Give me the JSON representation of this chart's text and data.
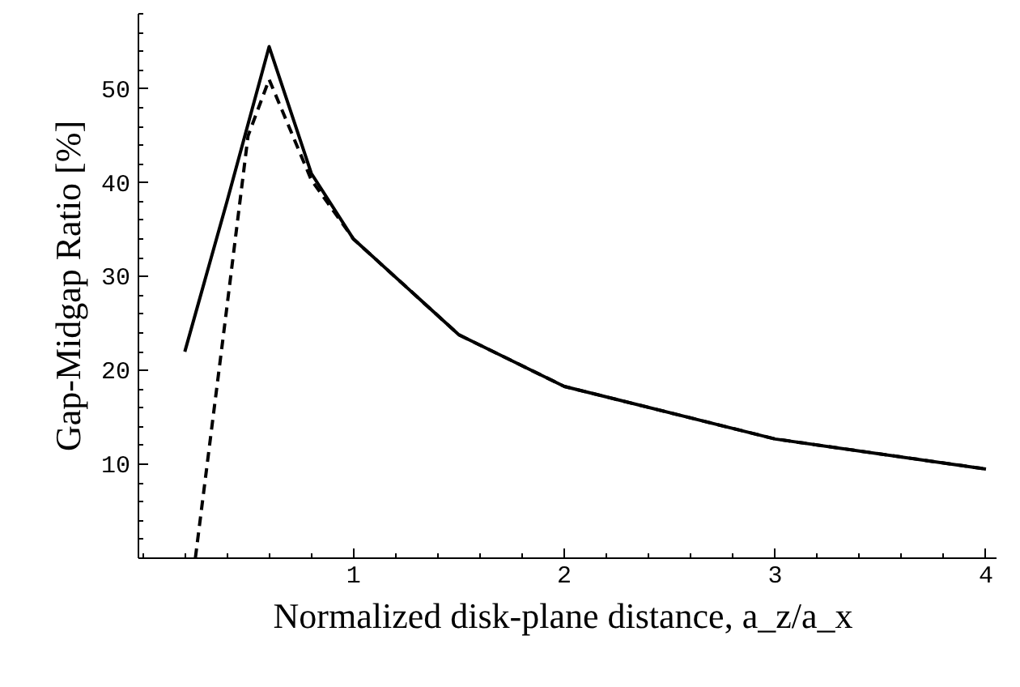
{
  "chart_data": {
    "type": "line",
    "xlabel": "Normalized disk-plane distance,  a_z/a_x",
    "ylabel": "Gap-Midgap Ratio [%]",
    "xlim": [
      -0.02,
      4.05
    ],
    "ylim": [
      0,
      58
    ],
    "xticks": [
      1,
      2,
      3,
      4
    ],
    "yticks": [
      10,
      20,
      30,
      40,
      50
    ],
    "grid": false,
    "marker": "none",
    "series": [
      {
        "color": "#000000",
        "line_style": "solid",
        "x": [
          0.2,
          0.4,
          0.6,
          0.8,
          1,
          1.5,
          2,
          3,
          4
        ],
        "values": [
          22,
          38,
          54.5,
          41,
          34,
          23.8,
          18.3,
          12.7,
          9.5
        ]
      },
      {
        "color": "#000000",
        "line_style": "dashed",
        "x": [
          0.25,
          0.39,
          0.5,
          0.6,
          0.8,
          1,
          1.5,
          2,
          3,
          4
        ],
        "values": [
          0,
          25,
          45,
          51,
          40.3,
          34,
          23.8,
          18.3,
          12.7,
          9.5
        ]
      }
    ]
  }
}
